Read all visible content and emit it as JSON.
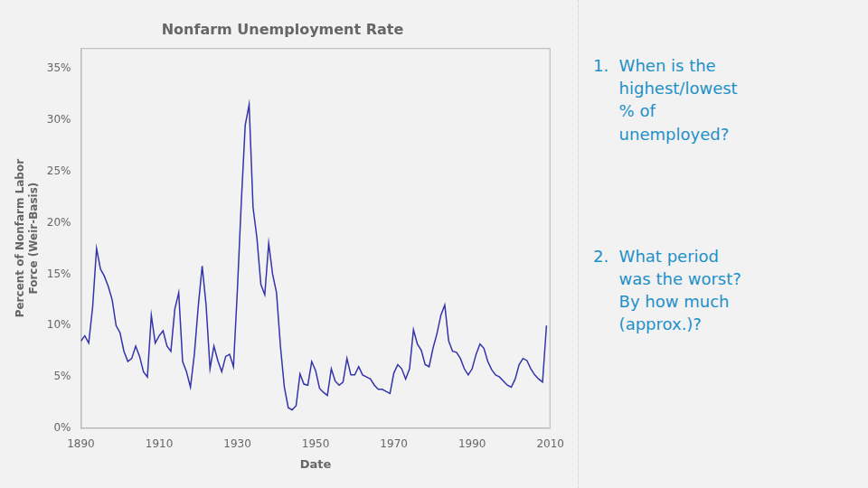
{
  "chart_data": {
    "type": "line",
    "title": "Nonfarm Unemployment Rate",
    "xlabel": "Date",
    "ylabel": "Percent of Nonfarm Labor\nForce (Weir-Basis)",
    "color": "#3333aa",
    "grid": false,
    "xlim": [
      1890,
      2010
    ],
    "xticks": [
      1890,
      1910,
      1930,
      1950,
      1970,
      1990,
      2010
    ],
    "ylim": [
      0,
      0.37
    ],
    "yticks": [
      {
        "value": 0.0,
        "label": "0%"
      },
      {
        "value": 0.05,
        "label": "5%"
      },
      {
        "value": 0.1,
        "label": "10%"
      },
      {
        "value": 0.15,
        "label": "15%"
      },
      {
        "value": 0.2,
        "label": "20%"
      },
      {
        "value": 0.25,
        "label": "25%"
      },
      {
        "value": 0.3,
        "label": "30%"
      },
      {
        "value": 0.35,
        "label": "35%"
      }
    ],
    "annotations": [
      "1.  When is the\n     highest/lowest\n     % of\n     unemployed?",
      "2.  What period\n     was the worst?\n     By how much\n     (approx.)?"
    ],
    "x": [
      1890,
      1891,
      1892,
      1893,
      1894,
      1895,
      1896,
      1897,
      1898,
      1899,
      1900,
      1901,
      1902,
      1903,
      1904,
      1905,
      1906,
      1907,
      1908,
      1909,
      1910,
      1911,
      1912,
      1913,
      1914,
      1915,
      1916,
      1917,
      1918,
      1919,
      1920,
      1921,
      1922,
      1923,
      1924,
      1925,
      1926,
      1927,
      1928,
      1929,
      1930,
      1931,
      1932,
      1933,
      1934,
      1935,
      1936,
      1937,
      1938,
      1939,
      1940,
      1941,
      1942,
      1943,
      1944,
      1945,
      1946,
      1947,
      1948,
      1949,
      1950,
      1951,
      1952,
      1953,
      1954,
      1955,
      1956,
      1957,
      1958,
      1959,
      1960,
      1961,
      1962,
      1963,
      1964,
      1965,
      1966,
      1967,
      1968,
      1969,
      1970,
      1971,
      1972,
      1973,
      1974,
      1975,
      1976,
      1977,
      1978,
      1979,
      1980,
      1981,
      1982,
      1983,
      1984,
      1985,
      1986,
      1987,
      1988,
      1989,
      1990,
      1991,
      1992,
      1993,
      1994,
      1995,
      1996,
      1997,
      1998,
      1999,
      2000,
      2001,
      2002,
      2003,
      2004,
      2005,
      2006,
      2007,
      2008,
      2009
    ],
    "values": [
      0.085,
      0.09,
      0.083,
      0.118,
      0.175,
      0.155,
      0.148,
      0.138,
      0.125,
      0.1,
      0.093,
      0.075,
      0.065,
      0.068,
      0.08,
      0.07,
      0.055,
      0.05,
      0.11,
      0.083,
      0.09,
      0.095,
      0.08,
      0.075,
      0.116,
      0.132,
      0.065,
      0.055,
      0.04,
      0.072,
      0.119,
      0.158,
      0.12,
      0.058,
      0.08,
      0.066,
      0.055,
      0.07,
      0.072,
      0.06,
      0.135,
      0.22,
      0.295,
      0.315,
      0.215,
      0.185,
      0.14,
      0.13,
      0.18,
      0.15,
      0.132,
      0.08,
      0.04,
      0.02,
      0.018,
      0.022,
      0.053,
      0.043,
      0.042,
      0.065,
      0.056,
      0.039,
      0.035,
      0.032,
      0.058,
      0.046,
      0.042,
      0.045,
      0.068,
      0.052,
      0.052,
      0.06,
      0.052,
      0.05,
      0.048,
      0.042,
      0.038,
      0.038,
      0.036,
      0.034,
      0.054,
      0.062,
      0.058,
      0.048,
      0.058,
      0.096,
      0.082,
      0.076,
      0.062,
      0.06,
      0.078,
      0.092,
      0.11,
      0.12,
      0.085,
      0.075,
      0.074,
      0.068,
      0.058,
      0.052,
      0.058,
      0.072,
      0.082,
      0.078,
      0.065,
      0.057,
      0.052,
      0.05,
      0.046,
      0.042,
      0.04,
      0.048,
      0.062,
      0.068,
      0.066,
      0.058,
      0.052,
      0.048,
      0.045,
      0.1
    ]
  }
}
